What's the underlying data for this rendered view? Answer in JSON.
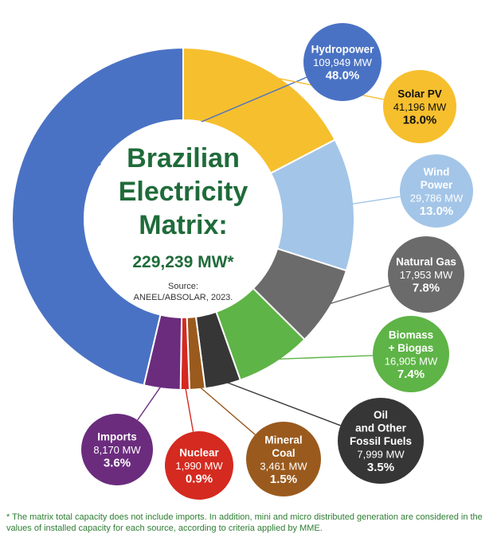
{
  "chart_data": {
    "type": "pie",
    "title_lines": [
      "Brazilian",
      "Electricity",
      "Matrix:"
    ],
    "total": "229,239 MW*",
    "source_lines": [
      "Source:",
      "ANEEL/ABSOLAR, 2023."
    ],
    "unit": "MW",
    "slices": [
      {
        "name_lines": [
          "Hydropower"
        ],
        "mw_label": "109,949 MW",
        "pct_label": "48.0%",
        "value": 109949,
        "percent": 48.0,
        "color": "#4a72c4",
        "bubble_color": "#4a72c4",
        "text_color": "#ffffff"
      },
      {
        "name_lines": [
          "Solar PV"
        ],
        "mw_label": "41,196 MW",
        "pct_label": "18.0%",
        "value": 41196,
        "percent": 18.0,
        "color": "#f6bf2e",
        "bubble_color": "#f6bf2e",
        "text_color": "#111111"
      },
      {
        "name_lines": [
          "Wind",
          "Power"
        ],
        "mw_label": "29,786 MW",
        "pct_label": "13.0%",
        "value": 29786,
        "percent": 13.0,
        "color": "#a3c5e8",
        "bubble_color": "#a3c5e8",
        "text_color": "#ffffff"
      },
      {
        "name_lines": [
          "Natural Gas"
        ],
        "mw_label": "17,953 MW",
        "pct_label": "7.8%",
        "value": 17953,
        "percent": 7.8,
        "color": "#6b6b6b",
        "bubble_color": "#6b6b6b",
        "text_color": "#ffffff"
      },
      {
        "name_lines": [
          "Biomass",
          "+ Biogas"
        ],
        "mw_label": "16,905 MW",
        "pct_label": "7.4%",
        "value": 16905,
        "percent": 7.4,
        "color": "#5eb446",
        "bubble_color": "#5eb446",
        "text_color": "#ffffff"
      },
      {
        "name_lines": [
          "Oil",
          "and Other",
          "Fossil Fuels"
        ],
        "mw_label": "7,999 MW",
        "pct_label": "3.5%",
        "value": 7999,
        "percent": 3.5,
        "color": "#363636",
        "bubble_color": "#363636",
        "text_color": "#ffffff"
      },
      {
        "name_lines": [
          "Mineral",
          "Coal"
        ],
        "mw_label": "3,461 MW",
        "pct_label": "1.5%",
        "value": 3461,
        "percent": 1.5,
        "color": "#9a5a1e",
        "bubble_color": "#9a5a1e",
        "text_color": "#ffffff"
      },
      {
        "name_lines": [
          "Nuclear"
        ],
        "mw_label": "1,990 MW",
        "pct_label": "0.9%",
        "value": 1990,
        "percent": 0.9,
        "color": "#d42a20",
        "bubble_color": "#d42a20",
        "text_color": "#ffffff"
      },
      {
        "name_lines": [
          "Imports"
        ],
        "mw_label": "8,170 MW",
        "pct_label": "3.6%",
        "value": 8170,
        "percent": 3.6,
        "color": "#6b2c7e",
        "bubble_color": "#6b2c7e",
        "text_color": "#ffffff"
      }
    ]
  },
  "footnote": "* The matrix total capacity does not include imports. In addition, mini and micro distributed generation are considered in the values of installed capacity for each source, according to criteria applied by MME."
}
